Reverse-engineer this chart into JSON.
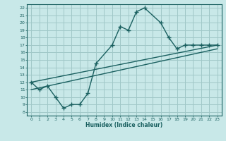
{
  "title": "",
  "xlabel": "Humidex (Indice chaleur)",
  "ylabel": "",
  "bg_color": "#c8e8e8",
  "grid_color": "#a0c8c8",
  "line_color": "#1a6060",
  "xlim": [
    -0.5,
    23.5
  ],
  "ylim": [
    7.5,
    22.5
  ],
  "xticks": [
    0,
    1,
    2,
    3,
    4,
    5,
    6,
    7,
    8,
    9,
    10,
    11,
    12,
    13,
    14,
    15,
    16,
    17,
    18,
    19,
    20,
    21,
    22,
    23
  ],
  "yticks": [
    8,
    9,
    10,
    11,
    12,
    13,
    14,
    15,
    16,
    17,
    18,
    19,
    20,
    21,
    22
  ],
  "line1_x": [
    0,
    1,
    2,
    3,
    4,
    5,
    6,
    7,
    8,
    10,
    11,
    12,
    13,
    14,
    16,
    17,
    18,
    19,
    20,
    21,
    22,
    23
  ],
  "line1_y": [
    12,
    11,
    11.5,
    10,
    8.5,
    9,
    9,
    10.5,
    14.5,
    17,
    19.5,
    19,
    21.5,
    22,
    20,
    18,
    16.5,
    17,
    17,
    17,
    17,
    17
  ],
  "line2_x": [
    0,
    23
  ],
  "line2_y": [
    12,
    17
  ],
  "line3_x": [
    0,
    23
  ],
  "line3_y": [
    11,
    16.5
  ],
  "marker_size": 4,
  "line_width": 1.0
}
